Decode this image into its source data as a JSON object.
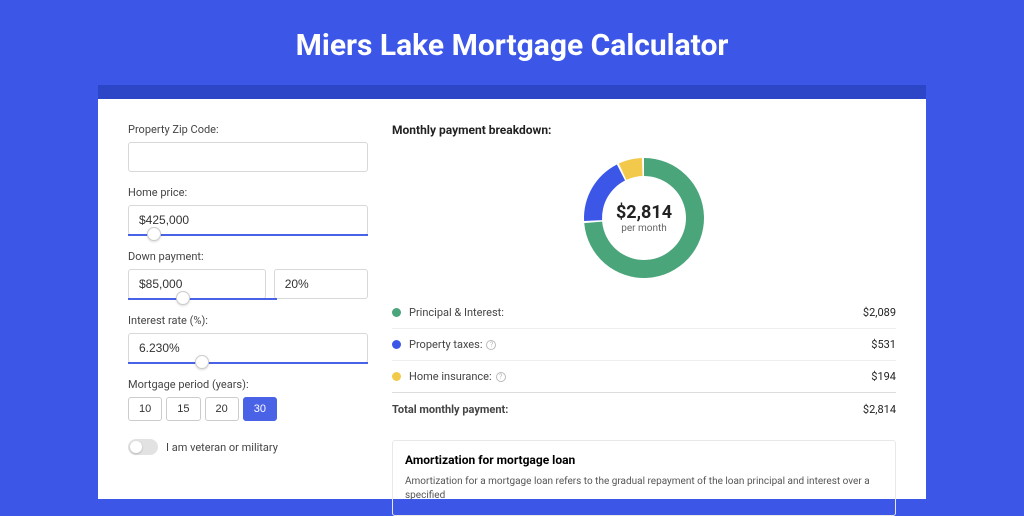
{
  "page": {
    "title": "Miers Lake Mortgage Calculator",
    "background_color": "#3c57e8",
    "strip_color": "#2d46c8",
    "card_color": "#ffffff",
    "accent_color": "#4a62e6"
  },
  "form": {
    "zip_label": "Property Zip Code:",
    "zip_value": "",
    "home_price_label": "Home price:",
    "home_price_value": "$425,000",
    "home_price_slider_pct": 8,
    "down_payment_label": "Down payment:",
    "down_payment_value": "$85,000",
    "down_payment_pct": "20%",
    "down_payment_slider_pct": 20,
    "interest_label": "Interest rate (%):",
    "interest_value": "6.230%",
    "interest_slider_pct": 28,
    "period_label": "Mortgage period (years):",
    "periods": [
      "10",
      "15",
      "20",
      "30"
    ],
    "period_active_index": 3,
    "veteran_label": "I am veteran or military",
    "veteran_on": false
  },
  "breakdown": {
    "header": "Monthly payment breakdown:",
    "donut": {
      "center_value": "$2,814",
      "center_sub": "per month",
      "size": 130,
      "thickness": 18,
      "segments": [
        {
          "color": "#4aa57a",
          "fraction": 0.742
        },
        {
          "color": "#3c57e8",
          "fraction": 0.189
        },
        {
          "color": "#f3c94c",
          "fraction": 0.069
        }
      ]
    },
    "items": [
      {
        "label": "Principal & Interest:",
        "value": "$2,089",
        "color": "#4aa57a",
        "info": false
      },
      {
        "label": "Property taxes:",
        "value": "$531",
        "color": "#3c57e8",
        "info": true
      },
      {
        "label": "Home insurance:",
        "value": "$194",
        "color": "#f3c94c",
        "info": true
      }
    ],
    "total_label": "Total monthly payment:",
    "total_value": "$2,814"
  },
  "amortization": {
    "title": "Amortization for mortgage loan",
    "text": "Amortization for a mortgage loan refers to the gradual repayment of the loan principal and interest over a specified"
  }
}
